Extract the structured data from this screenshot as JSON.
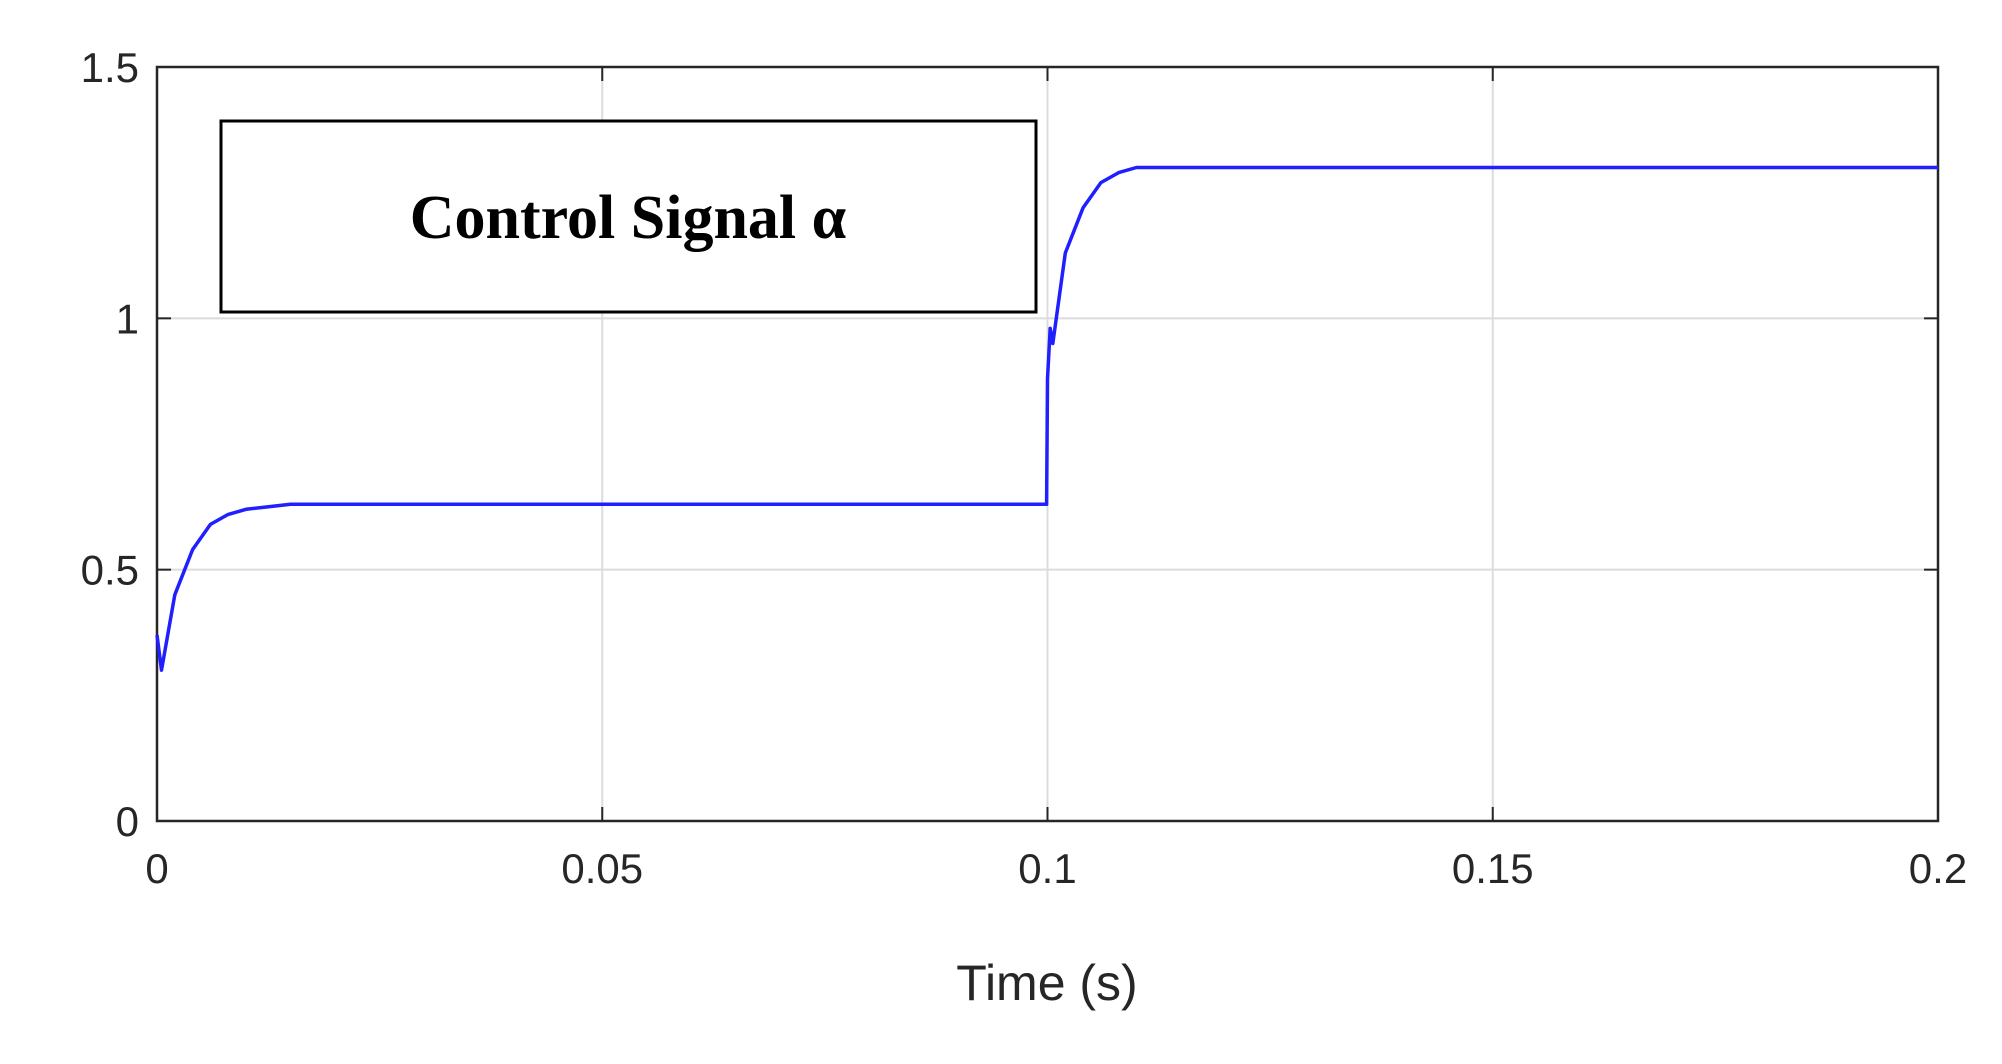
{
  "chart_data": {
    "type": "line",
    "annotation": "Control Signal α",
    "x_label": "Time (s)",
    "x": [
      0,
      0.0005,
      0.002,
      0.004,
      0.006,
      0.008,
      0.01,
      0.015,
      0.05,
      0.0999,
      0.1,
      0.1003,
      0.1006,
      0.102,
      0.104,
      0.106,
      0.108,
      0.11,
      0.12,
      0.2
    ],
    "series": [
      {
        "color": "#1f1fff",
        "values": [
          0.37,
          0.3,
          0.45,
          0.54,
          0.59,
          0.61,
          0.62,
          0.63,
          0.63,
          0.63,
          0.88,
          0.98,
          0.95,
          1.13,
          1.22,
          1.27,
          1.29,
          1.3,
          1.3,
          1.3
        ]
      }
    ],
    "xlim": [
      0,
      0.2
    ],
    "xticks": [
      0,
      0.05,
      0.1,
      0.15,
      0.2
    ],
    "ylim": [
      0,
      1.5
    ],
    "yticks": [
      0,
      0.5,
      1,
      1.5
    ],
    "grid": true
  }
}
